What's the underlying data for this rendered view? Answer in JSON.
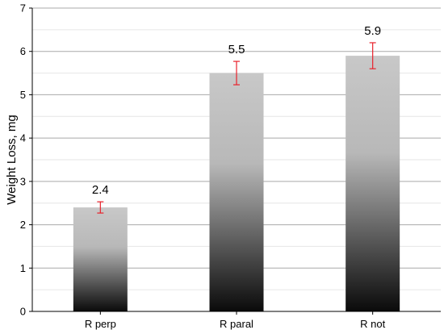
{
  "chart_data": {
    "type": "bar",
    "categories": [
      "R perp",
      "R paral",
      "R not"
    ],
    "values": [
      2.4,
      5.5,
      5.9
    ],
    "error_low": [
      2.27,
      5.23,
      5.6
    ],
    "error_high": [
      2.53,
      5.77,
      6.2
    ],
    "data_labels": [
      "2.4",
      "5.5",
      "5.9"
    ],
    "ylabel": "Weight Loss, mg",
    "xlabel": "",
    "ylim": [
      0,
      7
    ],
    "yticks": [
      0,
      1,
      2,
      3,
      4,
      5,
      6,
      7
    ],
    "grid": true,
    "minor_grid": true,
    "colors": {
      "bar_top": "#c8c8c8",
      "bar_bottom": "#0a0a0a",
      "error_bar": "#e8212b",
      "grid_major": "#a9a9a9",
      "grid_minor": "#e6e6e6",
      "axis": "#000000"
    }
  }
}
